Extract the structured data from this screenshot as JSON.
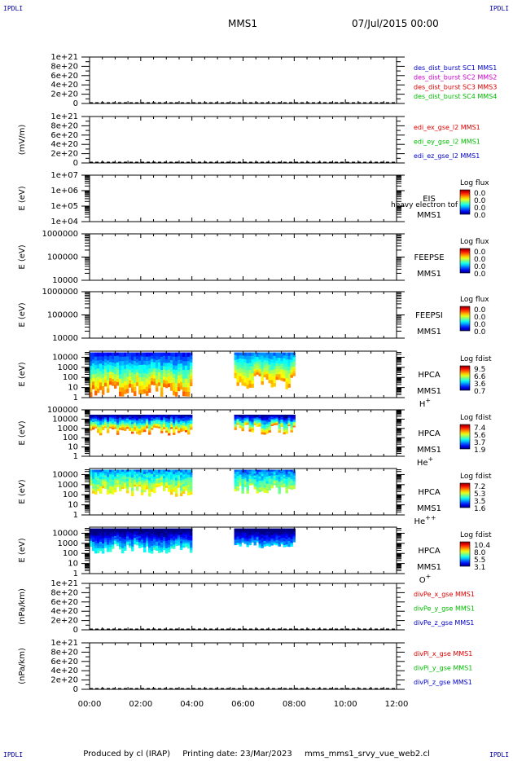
{
  "header": {
    "corner_label": "IPDLI",
    "spacecraft": "MMS1",
    "datetime": "07/Jul/2015 00:00"
  },
  "footer": {
    "produced_by": "Produced by cl (IRAP)",
    "printing_date": "Printing date: 23/Mar/2023",
    "file": "mms_mms1_srvy_vue_web2.cl"
  },
  "colors": {
    "blue": "#0000cc",
    "magenta": "#cc00cc",
    "red": "#dd0000",
    "green": "#00bb00"
  },
  "chart_data": {
    "type": "heatmap",
    "x_ticks": [
      "00:00",
      "02:00",
      "04:00",
      "06:00",
      "08:00",
      "10:00",
      "12:00"
    ],
    "x_range_hours": [
      0,
      12
    ],
    "panels": [
      {
        "kind": "line",
        "ylabel": "",
        "ticks": [
          "1e+21",
          "8e+20",
          "6e+20",
          "4e+20",
          "2e+20",
          "0"
        ],
        "ylim": [
          0,
          1e+21
        ],
        "legend": [
          {
            "text": "des_dist_burst SC1 MMS1",
            "color": "blue"
          },
          {
            "text": "des_dist_burst SC2 MMS2",
            "color": "magenta"
          },
          {
            "text": "des_dist_burst SC3 MMS3",
            "color": "red"
          },
          {
            "text": "des_dist_burst SC4 MMS4",
            "color": "green"
          }
        ]
      },
      {
        "kind": "line",
        "ylabel": "(mV/m)",
        "ticks": [
          "1e+21",
          "8e+20",
          "6e+20",
          "4e+20",
          "2e+20",
          "0"
        ],
        "ylim": [
          0,
          1e+21
        ],
        "legend": [
          {
            "text": "edi_ex_gse_l2 MMS1",
            "color": "red"
          },
          {
            "text": "edi_ey_gse_l2 MMS1",
            "color": "green"
          },
          {
            "text": "edi_ez_gse_l2 MMS1",
            "color": "blue"
          }
        ]
      },
      {
        "kind": "spec",
        "ylabel": "E (eV)",
        "ticks": [
          "1e+07",
          "1e+06",
          "1e+05",
          "1e+04"
        ],
        "log": true,
        "ylim": [
          10000.0,
          10000000.0
        ],
        "minor": true,
        "name": [
          "EIS",
          "MMS1"
        ],
        "overlay": "heavy electron tof",
        "cbar_title": "Log flux",
        "cbar": [
          "0.0",
          "0.0",
          "0.0",
          "0.0"
        ],
        "data": []
      },
      {
        "kind": "spec",
        "ylabel": "E (eV)",
        "ticks": [
          "1000000",
          "100000",
          "10000"
        ],
        "log": true,
        "ylim": [
          10000.0,
          1000000.0
        ],
        "minor": true,
        "name": [
          "FEEPSE",
          "MMS1"
        ],
        "cbar_title": "Log flux",
        "cbar": [
          "0.0",
          "0.0",
          "0.0",
          "0.0"
        ],
        "data": []
      },
      {
        "kind": "spec",
        "ylabel": "E (eV)",
        "ticks": [
          "1000000",
          "100000",
          "10000"
        ],
        "log": true,
        "ylim": [
          10000.0,
          1000000.0
        ],
        "minor": true,
        "name": [
          "FEEPSI",
          "MMS1"
        ],
        "cbar_title": "Log flux",
        "cbar": [
          "0.0",
          "0.0",
          "0.0",
          "0.0"
        ],
        "data": []
      },
      {
        "kind": "spec",
        "ylabel": "E (eV)",
        "ticks": [
          "10000",
          "1000",
          "100",
          "10",
          "1"
        ],
        "log": true,
        "ylim": [
          1,
          40000
        ],
        "name": [
          "HPCA",
          "MMS1"
        ],
        "species": "H",
        "sup": "+",
        "cbar_title": "Log fdist",
        "cbar": [
          "9.5",
          "6.6",
          "3.6",
          "0.7"
        ],
        "data": [
          {
            "t0": 0.0,
            "t1": 3.95,
            "emax": 30000,
            "emin_mean": 5,
            "emin_spread": 4,
            "hi": 7.6,
            "lo": 1.6
          },
          {
            "t0": 5.65,
            "t1": 8.0,
            "emax": 30000,
            "emin_mean": 40,
            "emin_spread": 6,
            "hi": 7.2,
            "lo": 2.6
          }
        ]
      },
      {
        "kind": "spec",
        "ylabel": "E (eV)",
        "ticks": [
          "100000",
          "10000",
          "1000",
          "100",
          "10",
          "1"
        ],
        "log": true,
        "ylim": [
          1,
          100000
        ],
        "name": [
          "HPCA",
          "MMS1"
        ],
        "species": "He",
        "sup": "+",
        "cbar_title": "Log fdist",
        "cbar": [
          "7.4",
          "5.6",
          "3.7",
          "1.9"
        ],
        "data": [
          {
            "t0": 0.0,
            "t1": 3.95,
            "emax": 30000,
            "emin_mean": 450,
            "emin_spread": 3,
            "hi": 6.2,
            "lo": 1.8
          },
          {
            "t0": 5.65,
            "t1": 8.0,
            "emax": 30000,
            "emin_mean": 900,
            "emin_spread": 4,
            "hi": 6.0,
            "lo": 1.6
          }
        ]
      },
      {
        "kind": "spec",
        "ylabel": "E (eV)",
        "ticks": [
          "10000",
          "1000",
          "100",
          "10",
          "1"
        ],
        "log": true,
        "ylim": [
          1,
          40000
        ],
        "name": [
          "HPCA",
          "MMS1"
        ],
        "species": "He",
        "sup": "++",
        "cbar_title": "Log fdist",
        "cbar": [
          "7.2",
          "5.3",
          "3.5",
          "1.6"
        ],
        "data": [
          {
            "t0": 0.0,
            "t1": 3.95,
            "emax": 30000,
            "emin_mean": 250,
            "emin_spread": 4,
            "hi": 5.2,
            "lo": 3.0
          },
          {
            "t0": 5.65,
            "t1": 8.0,
            "emax": 30000,
            "emin_mean": 350,
            "emin_spread": 3,
            "hi": 4.8,
            "lo": 2.8
          }
        ]
      },
      {
        "kind": "spec",
        "ylabel": "E (eV)",
        "ticks": [
          "10000",
          "1000",
          "100",
          "10",
          "1"
        ],
        "log": true,
        "ylim": [
          1,
          40000
        ],
        "name": [
          "HPCA",
          "MMS1"
        ],
        "species": "O",
        "sup": "+",
        "cbar_title": "Log fdist",
        "cbar": [
          "10.4",
          "8.0",
          "5.5",
          "3.1"
        ],
        "data": [
          {
            "t0": 0.0,
            "t1": 3.95,
            "emax": 30000,
            "emin_mean": 300,
            "emin_spread": 3,
            "hi": 6.2,
            "lo": 2.4
          },
          {
            "t0": 5.65,
            "t1": 8.0,
            "emax": 30000,
            "emin_mean": 700,
            "emin_spread": 2,
            "hi": 5.6,
            "lo": 2.4
          }
        ]
      },
      {
        "kind": "line",
        "ylabel": "(nPa/km)",
        "ticks": [
          "1e+21",
          "8e+20",
          "6e+20",
          "4e+20",
          "2e+20",
          "0"
        ],
        "ylim": [
          0,
          1e+21
        ],
        "legend": [
          {
            "text": "divPe_x_gse MMS1",
            "color": "red"
          },
          {
            "text": "divPe_y_gse MMS1",
            "color": "green"
          },
          {
            "text": "divPe_z_gse MMS1",
            "color": "blue"
          }
        ]
      },
      {
        "kind": "line",
        "ylabel": "(nPa/km)",
        "ticks": [
          "1e+21",
          "8e+20",
          "6e+20",
          "4e+20",
          "2e+20",
          "0"
        ],
        "ylim": [
          0,
          1e+21
        ],
        "legend": [
          {
            "text": "divPi_x_gse MMS1",
            "color": "red"
          },
          {
            "text": "divPi_y_gse MMS1",
            "color": "green"
          },
          {
            "text": "divPi_z_gse MMS1",
            "color": "blue"
          }
        ]
      }
    ]
  }
}
